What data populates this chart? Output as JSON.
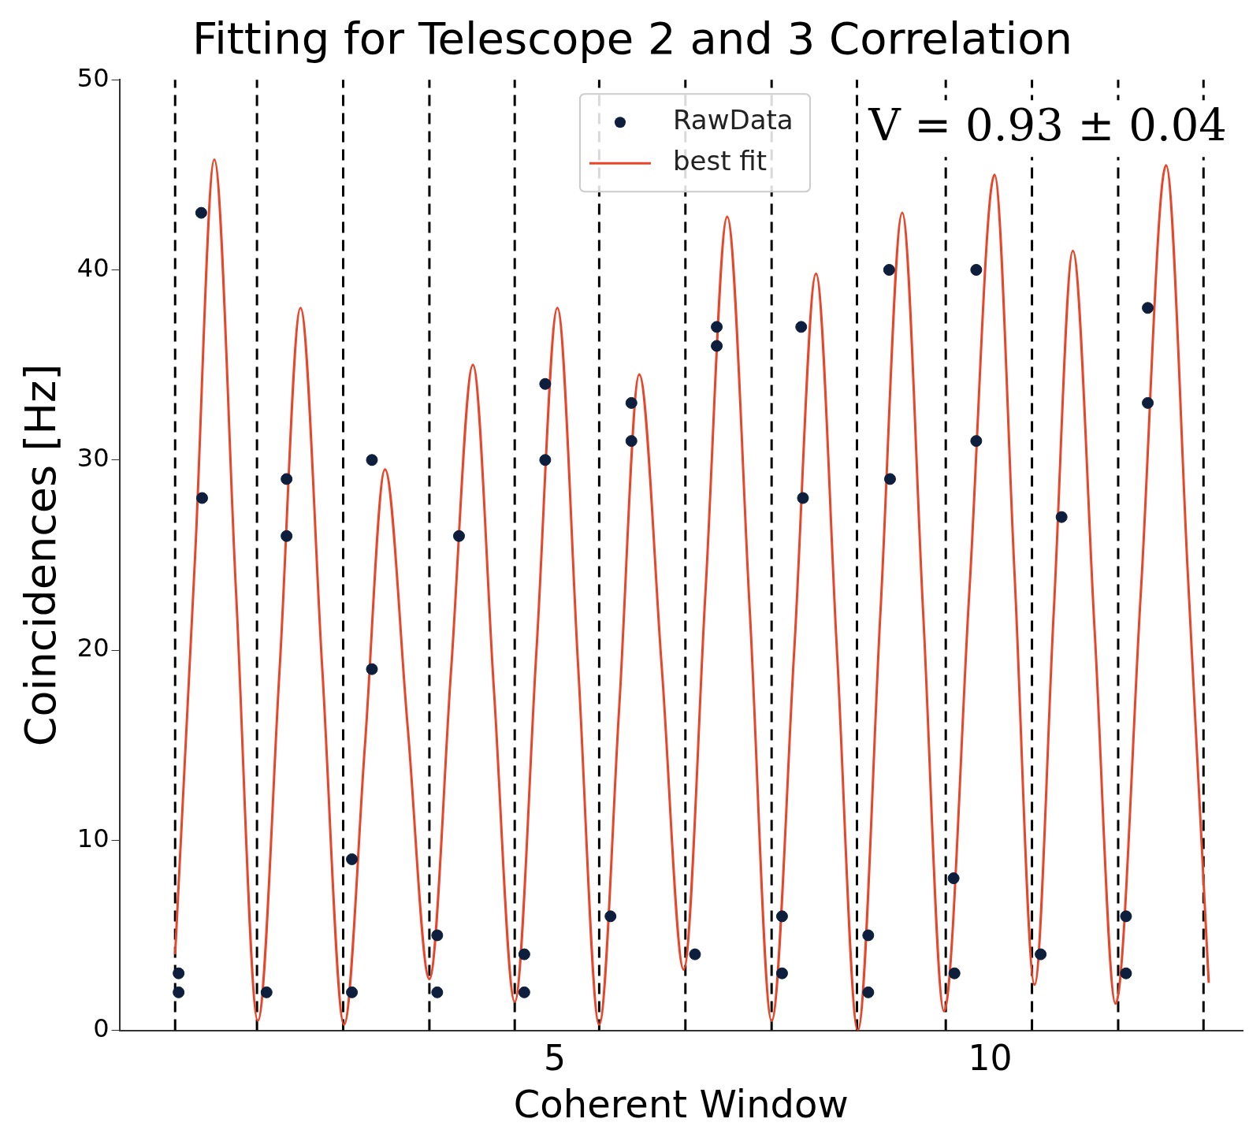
{
  "chart_data": {
    "type": "scatter",
    "title": "Fitting for Telescope 2 and 3 Correlation",
    "xlabel": "Coherent Window",
    "ylabel": "Coincidences [Hz]",
    "xlim": [
      0,
      12.9
    ],
    "xticks": [
      5,
      10
    ],
    "ylim": [
      0,
      50
    ],
    "yticks": [
      0,
      10,
      20,
      30,
      40,
      50
    ],
    "grid": false,
    "legend": "top",
    "marker": "circle",
    "annotations": [
      "V = 0.93 ± 0.04"
    ],
    "series": [
      {
        "name": "RawData",
        "color": "#0d1f3c",
        "x": [
          0.68,
          0.68,
          0.94,
          0.95,
          1.69,
          1.92,
          1.92,
          2.67,
          2.67,
          2.9,
          2.9,
          3.65,
          3.65,
          3.9,
          4.65,
          4.65,
          4.89,
          4.89,
          5.64,
          5.88,
          5.88,
          6.61,
          6.86,
          6.86,
          7.61,
          7.61,
          7.83,
          7.85,
          8.6,
          8.6,
          8.84,
          8.85,
          9.58,
          9.59,
          9.84,
          9.84,
          10.58,
          10.82,
          11.56,
          11.56,
          11.81,
          11.81
        ],
        "values": [
          3,
          2,
          43,
          28,
          2,
          29,
          26,
          9,
          2,
          19,
          30,
          5,
          2,
          26,
          4,
          2,
          30,
          34,
          6,
          33,
          31,
          4,
          37,
          36,
          6,
          3,
          37,
          28,
          5,
          2,
          40,
          29,
          8,
          3,
          40,
          31,
          4,
          27,
          6,
          3,
          38,
          33
        ]
      },
      {
        "name": "best fit",
        "type": "line",
        "color": "#e8462a",
        "line_style": "solid",
        "marker": "none",
        "x": [
          0.64,
          0.87,
          1.09,
          1.34,
          1.59,
          1.84,
          2.08,
          2.33,
          2.58,
          2.82,
          3.05,
          3.31,
          3.56,
          3.81,
          4.06,
          4.3,
          4.54,
          4.79,
          5.03,
          5.27,
          5.51,
          5.74,
          5.97,
          6.23,
          6.48,
          6.73,
          6.98,
          7.24,
          7.49,
          7.75,
          8.0,
          8.24,
          8.48,
          8.74,
          8.99,
          9.23,
          9.47,
          9.76,
          10.05,
          10.28,
          10.51,
          10.73,
          10.95,
          11.2,
          11.44,
          11.73,
          12.02,
          12.27,
          12.51
        ],
        "values": [
          4,
          25,
          45.8,
          23,
          0.5,
          19,
          38,
          19,
          0.3,
          15,
          29.5,
          16,
          2.7,
          19,
          35,
          18,
          1.5,
          20,
          38,
          19,
          0.3,
          17,
          34.5,
          19,
          3.2,
          23,
          42.8,
          22,
          0.5,
          20,
          39.8,
          20,
          0,
          22,
          43,
          22,
          1,
          23,
          45,
          24,
          2.4,
          22,
          41,
          21,
          1.4,
          23,
          45.5,
          24,
          2.5
        ]
      }
    ],
    "ref_lines": [
      {
        "axis": "x",
        "value": 0.64,
        "color": "#000000",
        "line_style": "dashed"
      },
      {
        "axis": "x",
        "value": 1.58,
        "color": "#000000",
        "line_style": "dashed"
      },
      {
        "axis": "x",
        "value": 2.57,
        "color": "#000000",
        "line_style": "dashed"
      },
      {
        "axis": "x",
        "value": 3.56,
        "color": "#000000",
        "line_style": "dashed"
      },
      {
        "axis": "x",
        "value": 4.54,
        "color": "#000000",
        "line_style": "dashed"
      },
      {
        "axis": "x",
        "value": 5.51,
        "color": "#000000",
        "line_style": "dashed"
      },
      {
        "axis": "x",
        "value": 6.5,
        "color": "#000000",
        "line_style": "dashed"
      },
      {
        "axis": "x",
        "value": 7.49,
        "color": "#000000",
        "line_style": "dashed"
      },
      {
        "axis": "x",
        "value": 8.47,
        "color": "#000000",
        "line_style": "dashed"
      },
      {
        "axis": "x",
        "value": 9.49,
        "color": "#000000",
        "line_style": "dashed"
      },
      {
        "axis": "x",
        "value": 10.48,
        "color": "#000000",
        "line_style": "dashed"
      },
      {
        "axis": "x",
        "value": 11.47,
        "color": "#000000",
        "line_style": "dashed"
      },
      {
        "axis": "x",
        "value": 12.45,
        "color": "#000000",
        "line_style": "dashed"
      }
    ]
  }
}
